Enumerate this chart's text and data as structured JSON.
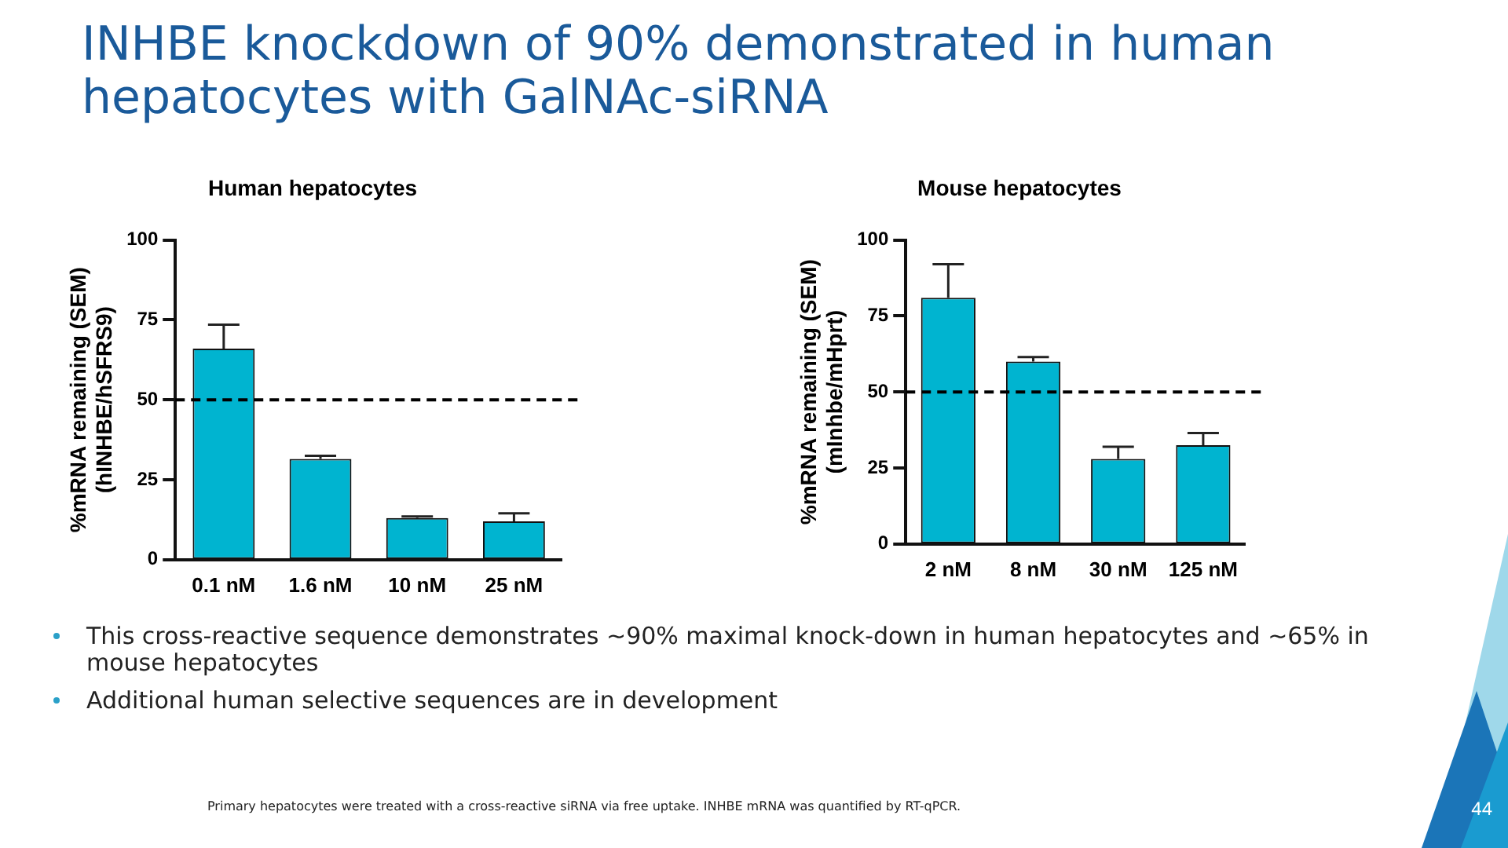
{
  "chart_data": [
    {
      "type": "bar",
      "title": "Human hepatocytes",
      "ylabel": "%mRNA remaining (SEM)\n(hINHBE/hSFRS9)",
      "categories": [
        "0.1 nM",
        "1.6 nM",
        "10 nM",
        "25 nM"
      ],
      "series": [
        {
          "color": "#00b4d0",
          "values": [
            66,
            31.5,
            13,
            12
          ],
          "errors": [
            7.5,
            1,
            0.5,
            2.5
          ]
        }
      ],
      "ylim": [
        0,
        100
      ],
      "yticks": [
        0,
        25,
        50,
        75,
        100
      ],
      "grid": false,
      "legend": false,
      "ref_lines": [
        {
          "axis": "y",
          "value": 50,
          "color": "#000000",
          "line_style": "dashed"
        }
      ],
      "annotations": [
        "INHBE knockdown of 90% demonstrated in human hepatocytes with GalNAc-siRNA"
      ]
    },
    {
      "type": "bar",
      "title": "Mouse hepatocytes",
      "ylabel": "%mRNA remaining (SEM)\n(mInhbe/mHprt)",
      "categories": [
        "2 nM",
        "8 nM",
        "30 nM",
        "125 nM"
      ],
      "series": [
        {
          "color": "#00b4d0",
          "values": [
            81,
            60,
            28,
            32.5
          ],
          "errors": [
            11,
            1.5,
            4,
            4
          ]
        }
      ],
      "ylim": [
        0,
        100
      ],
      "yticks": [
        0,
        25,
        50,
        75,
        100
      ],
      "grid": false,
      "legend": false,
      "ref_lines": [
        {
          "axis": "y",
          "value": 50,
          "color": "#000000",
          "line_style": "dashed"
        }
      ],
      "annotations": [
        "This cross-reactive sequence demonstrates ~90% maximal knock-down in human hepatocytes and ~65% in mouse hepatocytes",
        "Additional human selective sequences are in development",
        "Primary hepatocytes were treated with a cross-reactive siRNA via free uptake. INHBE mRNA was quantified by RT-qPCR.",
        "44"
      ]
    }
  ]
}
